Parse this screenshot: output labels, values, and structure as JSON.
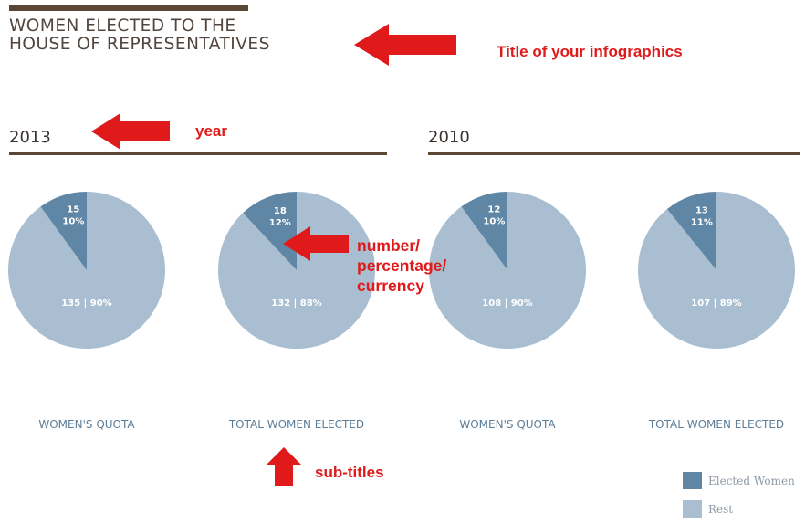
{
  "header": {
    "title_line1": "WOMEN ELECTED TO THE",
    "title_line2": "HOUSE OF REPRESENTATIVES"
  },
  "annotations": {
    "title_note": "Title of your infographics",
    "year_note": "year",
    "number_note_1": "number/",
    "number_note_2": "percentage/",
    "number_note_3": "currency",
    "subtitle_note": "sub-titles"
  },
  "colors": {
    "elected": "#5f87a5",
    "rest": "#a9bfd1",
    "rule": "#5a4734",
    "annotation": "#e01a1a"
  },
  "chart_data": [
    {
      "type": "pie",
      "year": "2013",
      "title": "WOMEN'S QUOTA",
      "slices": [
        {
          "name": "Elected Women",
          "value": 15,
          "percent": 10,
          "label_line1": "15",
          "label_line2": "10%"
        },
        {
          "name": "Rest",
          "value": 135,
          "percent": 90,
          "label": "135 | 90%"
        }
      ]
    },
    {
      "type": "pie",
      "year": "2013",
      "title": "TOTAL WOMEN ELECTED",
      "slices": [
        {
          "name": "Elected Women",
          "value": 18,
          "percent": 12,
          "label_line1": "18",
          "label_line2": "12%"
        },
        {
          "name": "Rest",
          "value": 132,
          "percent": 88,
          "label": "132 | 88%"
        }
      ]
    },
    {
      "type": "pie",
      "year": "2010",
      "title": "WOMEN'S QUOTA",
      "slices": [
        {
          "name": "Elected Women",
          "value": 12,
          "percent": 10,
          "label_line1": "12",
          "label_line2": "10%"
        },
        {
          "name": "Rest",
          "value": 108,
          "percent": 90,
          "label": "108 | 90%"
        }
      ]
    },
    {
      "type": "pie",
      "year": "2010",
      "title": "TOTAL WOMEN ELECTED",
      "slices": [
        {
          "name": "Elected Women",
          "value": 13,
          "percent": 11,
          "label_line1": "13",
          "label_line2": "11%"
        },
        {
          "name": "Rest",
          "value": 107,
          "percent": 89,
          "label": "107 | 89%"
        }
      ]
    }
  ],
  "legend": {
    "position": "bottom-right",
    "items": [
      {
        "label": "Elected Women",
        "color": "#5f87a5"
      },
      {
        "label": "Rest",
        "color": "#a9bfd1"
      }
    ]
  }
}
